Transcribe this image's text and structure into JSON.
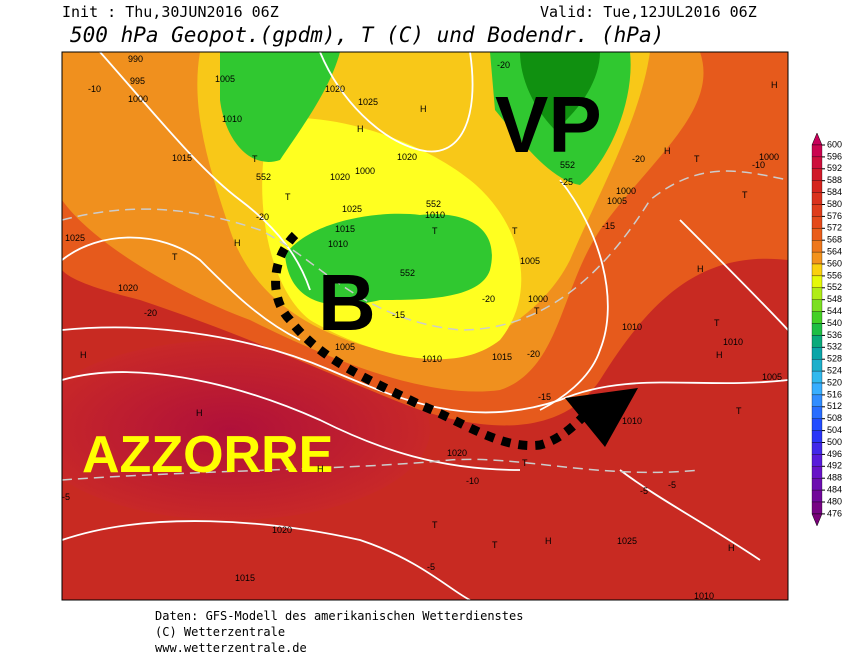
{
  "header": {
    "init": "Init : Thu,30JUN2016 06Z",
    "valid": "Valid: Tue,12JUL2016 06Z",
    "title": "500 hPa Geopot.(gpdm), T (C) und Bodendr. (hPa)"
  },
  "map": {
    "annotations": [
      "VP",
      "B",
      "AZZORRE"
    ],
    "labels": [
      "990",
      "995",
      "1000",
      "-10",
      "1005",
      "1010",
      "1020",
      "1025",
      "H",
      "H",
      "1015",
      "T",
      "552",
      "1000",
      "1020",
      "1025",
      "1015",
      "1010",
      "H",
      "-20",
      "T",
      "552",
      "1010",
      "T",
      "T",
      "1005",
      "1000",
      "T",
      "-20",
      "552",
      "-15",
      "1005",
      "1010",
      "1015",
      "-20",
      "-15",
      "1010",
      "1010",
      "1010",
      "1005",
      "H",
      "T",
      "H",
      "T",
      "H",
      "H",
      "T",
      "1000",
      "-10",
      "T",
      "1000",
      "1005",
      "-15",
      "-20",
      "552",
      "-25",
      "-20",
      "1020",
      "1020",
      "T",
      "-20",
      "1025",
      "H",
      "H",
      "H",
      "1020",
      "-10",
      "T",
      "T",
      "T",
      "H",
      "1025",
      "1020",
      "1015",
      "-5",
      "-5",
      "-5",
      "-5",
      "H",
      "1010"
    ]
  },
  "colorbar": {
    "levels": [
      600,
      596,
      592,
      588,
      584,
      580,
      576,
      572,
      568,
      564,
      560,
      556,
      552,
      548,
      544,
      540,
      536,
      532,
      528,
      524,
      520,
      516,
      512,
      508,
      504,
      500,
      496,
      492,
      488,
      484,
      480,
      476
    ]
  },
  "footer": {
    "lines": [
      "Daten: GFS-Modell des amerikanischen Wetterdienstes",
      "(C) Wetterzentrale",
      "www.wetterzentrale.de"
    ]
  }
}
